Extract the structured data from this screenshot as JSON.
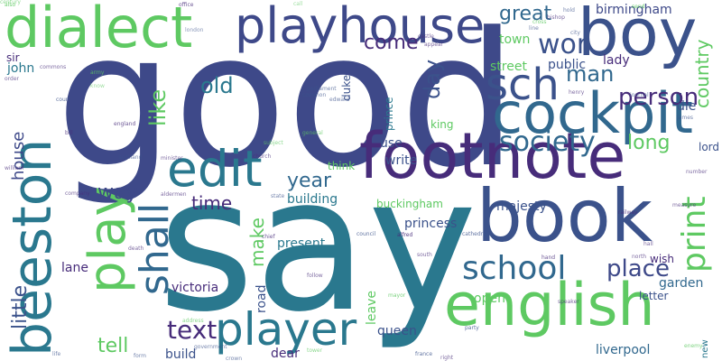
{
  "word_cloud": {
    "words": [
      {
        "text": "good",
        "color": "#3e4989"
      },
      {
        "text": "say",
        "color": "#2a788e"
      },
      {
        "text": "footnote",
        "color": "#472c7a"
      },
      {
        "text": "book",
        "color": "#3b528b"
      },
      {
        "text": "boy",
        "color": "#3b528b"
      },
      {
        "text": "cockpit",
        "color": "#31688e"
      },
      {
        "text": "english",
        "color": "#5ec962"
      },
      {
        "text": "dialect",
        "color": "#5ec962"
      },
      {
        "text": "beeston",
        "color": "#2a788e"
      },
      {
        "text": "playhouse",
        "color": "#3e4989"
      },
      {
        "text": "edit",
        "color": "#2a788e"
      },
      {
        "text": "player",
        "color": "#2a788e"
      },
      {
        "text": "play",
        "color": "#5ec962"
      },
      {
        "text": "sch",
        "color": "#3b528b"
      },
      {
        "text": "school",
        "color": "#31688e"
      },
      {
        "text": "print",
        "color": "#5ec962"
      },
      {
        "text": "shall",
        "color": "#31688e"
      },
      {
        "text": "society",
        "color": "#31688e"
      },
      {
        "text": "text",
        "color": "#472c7a"
      },
      {
        "text": "wor",
        "color": "#3b528b"
      },
      {
        "text": "place",
        "color": "#3e4989"
      },
      {
        "text": "person",
        "color": "#472c7a"
      },
      {
        "text": "great",
        "color": "#31688e"
      },
      {
        "text": "man",
        "color": "#31688e"
      },
      {
        "text": "country",
        "color": "#5ec962"
      },
      {
        "text": "little",
        "color": "#3b528b"
      },
      {
        "text": "house",
        "color": "#3e4989"
      },
      {
        "text": "old",
        "color": "#2a788e"
      },
      {
        "text": "like",
        "color": "#5ec962"
      },
      {
        "text": "come",
        "color": "#472c7a"
      },
      {
        "text": "day",
        "color": "#3b528b"
      },
      {
        "text": "year",
        "color": "#31688e"
      },
      {
        "text": "long",
        "color": "#5ec962"
      },
      {
        "text": "way",
        "color": "#3e4989"
      },
      {
        "text": "time",
        "color": "#472c7a"
      },
      {
        "text": "make",
        "color": "#5ec962"
      },
      {
        "text": "tell",
        "color": "#5ec962"
      },
      {
        "text": "birmingham",
        "color": "#3e4989"
      },
      {
        "text": "garden",
        "color": "#31688e"
      },
      {
        "text": "liverpool",
        "color": "#31688e"
      },
      {
        "text": "leave",
        "color": "#5ec962"
      },
      {
        "text": "victoria",
        "color": "#472c7a"
      },
      {
        "text": "build",
        "color": "#3b528b"
      },
      {
        "text": "lane",
        "color": "#472c7a"
      },
      {
        "text": "present",
        "color": "#2a788e"
      },
      {
        "text": "building",
        "color": "#2a788e"
      },
      {
        "text": "town",
        "color": "#5ec962"
      },
      {
        "text": "street",
        "color": "#5ec962"
      },
      {
        "text": "public",
        "color": "#3b528b"
      },
      {
        "text": "john",
        "color": "#2a788e"
      },
      {
        "text": "lady",
        "color": "#472c7a"
      },
      {
        "text": "die",
        "color": "#3b528b"
      },
      {
        "text": "road",
        "color": "#3b528b"
      },
      {
        "text": "open",
        "color": "#5ec962"
      },
      {
        "text": "queen",
        "color": "#3b528b"
      },
      {
        "text": "princess",
        "color": "#3b528b"
      },
      {
        "text": "majesty",
        "color": "#3b528b"
      },
      {
        "text": "buckingham",
        "color": "#5ec962"
      },
      {
        "text": "wish",
        "color": "#472c7a"
      },
      {
        "text": "lord",
        "color": "#3b528b"
      },
      {
        "text": "use",
        "color": "#3b528b"
      },
      {
        "text": "write",
        "color": "#3b528b"
      },
      {
        "text": "king",
        "color": "#5ec962"
      },
      {
        "text": "think",
        "color": "#5ec962"
      },
      {
        "text": "dear",
        "color": "#472c7a"
      },
      {
        "text": "sir",
        "color": "#472c7a"
      },
      {
        "text": "letter",
        "color": "#3b528b"
      },
      {
        "text": "duke",
        "color": "#3b528b"
      },
      {
        "text": "prince",
        "color": "#2a788e"
      },
      {
        "text": "new",
        "color": "#2a788e"
      }
    ],
    "minor_words": [
      {
        "text": "also",
        "color": "#5ec962"
      },
      {
        "text": "send",
        "color": "#5ec962"
      },
      {
        "text": "office",
        "color": "#472c7a"
      },
      {
        "text": "call",
        "color": "#5ec962"
      },
      {
        "text": "cross",
        "color": "#5ec962"
      },
      {
        "text": "alfred",
        "color": "#472c7a"
      },
      {
        "text": "army",
        "color": "#5ec962"
      },
      {
        "text": "know",
        "color": "#5ec962"
      },
      {
        "text": "london",
        "color": "#3b528b"
      },
      {
        "text": "parliament",
        "color": "#3b528b"
      },
      {
        "text": "common",
        "color": "#3b528b"
      },
      {
        "text": "edward",
        "color": "#3b528b"
      },
      {
        "text": "court",
        "color": "#3b528b"
      },
      {
        "text": "bill",
        "color": "#472c7a"
      },
      {
        "text": "england",
        "color": "#472c7a"
      },
      {
        "text": "scotland",
        "color": "#3b528b"
      },
      {
        "text": "minister",
        "color": "#472c7a"
      },
      {
        "text": "church",
        "color": "#472c7a"
      },
      {
        "text": "general",
        "color": "#5ec962"
      },
      {
        "text": "subject",
        "color": "#5ec962"
      },
      {
        "text": "state",
        "color": "#3b528b"
      },
      {
        "text": "chief",
        "color": "#472c7a"
      },
      {
        "text": "council",
        "color": "#3b528b"
      },
      {
        "text": "cathedral",
        "color": "#3b528b"
      },
      {
        "text": "railway",
        "color": "#472c7a"
      },
      {
        "text": "measure",
        "color": "#472c7a"
      },
      {
        "text": "number",
        "color": "#472c7a"
      },
      {
        "text": "henry",
        "color": "#472c7a"
      },
      {
        "text": "journal",
        "color": "#3b528b"
      },
      {
        "text": "james",
        "color": "#3b528b"
      },
      {
        "text": "north",
        "color": "#472c7a"
      },
      {
        "text": "hall",
        "color": "#472c7a"
      },
      {
        "text": "hand",
        "color": "#472c7a"
      },
      {
        "text": "south",
        "color": "#472c7a"
      },
      {
        "text": "mayor",
        "color": "#5ec962"
      },
      {
        "text": "party",
        "color": "#3b528b"
      },
      {
        "text": "enemy",
        "color": "#5ec962"
      },
      {
        "text": "france",
        "color": "#3b528b"
      },
      {
        "text": "right",
        "color": "#472c7a"
      },
      {
        "text": "government",
        "color": "#3b528b"
      },
      {
        "text": "crown",
        "color": "#3b528b"
      },
      {
        "text": "tower",
        "color": "#5ec962"
      },
      {
        "text": "life",
        "color": "#3b528b"
      },
      {
        "text": "form",
        "color": "#3b528b"
      },
      {
        "text": "address",
        "color": "#5ec962"
      },
      {
        "text": "follow",
        "color": "#472c7a"
      },
      {
        "text": "company",
        "color": "#472c7a"
      },
      {
        "text": "aldermen",
        "color": "#472c7a"
      },
      {
        "text": "william",
        "color": "#472c7a"
      },
      {
        "text": "commons",
        "color": "#472c7a"
      },
      {
        "text": "order",
        "color": "#472c7a"
      },
      {
        "text": "appear",
        "color": "#472c7a"
      },
      {
        "text": "castle",
        "color": "#472c7a"
      },
      {
        "text": "hold",
        "color": "#3b528b"
      },
      {
        "text": "city",
        "color": "#3b528b"
      },
      {
        "text": "line",
        "color": "#3b528b"
      },
      {
        "text": "bishop",
        "color": "#472c7a"
      },
      {
        "text": "speaker",
        "color": "#472c7a"
      },
      {
        "text": "death",
        "color": "#472c7a"
      },
      {
        "text": "century",
        "color": "#5ec962"
      }
    ]
  }
}
